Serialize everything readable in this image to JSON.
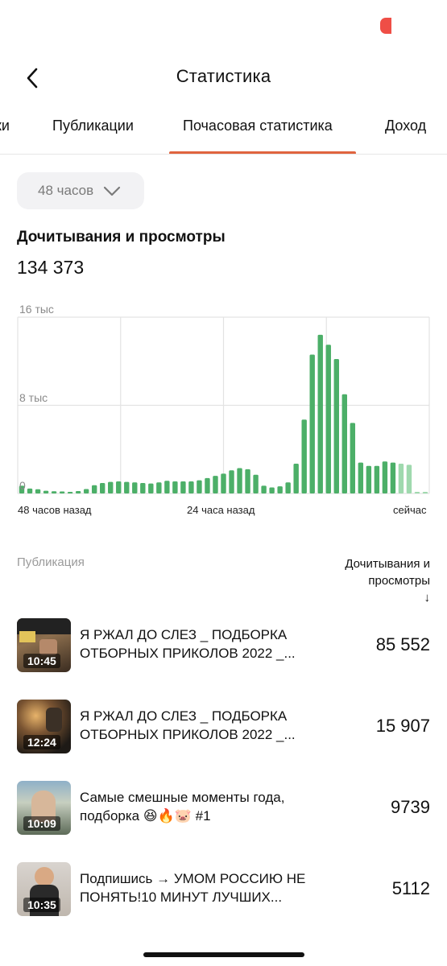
{
  "header": {
    "title": "Статистика"
  },
  "tabs": [
    {
      "label": "ки"
    },
    {
      "label": "Публикации"
    },
    {
      "label": "Почасовая статистика",
      "active": true
    },
    {
      "label": "Доход"
    }
  ],
  "period": {
    "selected": "48 часов"
  },
  "section": {
    "title": "Дочитывания и просмотры",
    "total": "134 373"
  },
  "chart_data": {
    "type": "bar",
    "title": "Дочитывания и просмотры",
    "yticks": [
      "16 тыс",
      "8 тыс",
      "0"
    ],
    "ylim": [
      0,
      16000
    ],
    "xticks": [
      "48 часов назад",
      "24 часа назад",
      "сейчас"
    ],
    "grid": true,
    "accent": "#4caf68",
    "accent_light": "#9fd9ae",
    "values": [
      700,
      450,
      380,
      250,
      200,
      180,
      150,
      220,
      400,
      750,
      950,
      1050,
      1100,
      1050,
      1000,
      950,
      900,
      1000,
      1150,
      1100,
      1100,
      1100,
      1200,
      1400,
      1600,
      1800,
      2100,
      2300,
      2200,
      1700,
      700,
      550,
      650,
      1000,
      2700,
      6700,
      12600,
      14400,
      13500,
      12200,
      9000,
      6400,
      2800,
      2500,
      2500,
      2900,
      2800,
      2700,
      2600,
      150,
      150
    ],
    "light_from_index": 47
  },
  "list": {
    "col_pub": "Публикация",
    "col_metric": "Дочитывания и просмотры",
    "sort_arrow": "↓",
    "items": [
      {
        "title": "Я РЖАЛ ДО СЛЕЗ _ ПОДБОРКА ОТБОРНЫХ ПРИКОЛОВ 2022 _...",
        "duration": "10:45",
        "value": "85 552"
      },
      {
        "title": "Я РЖАЛ ДО СЛЕЗ _ ПОДБОРКА ОТБОРНЫХ ПРИКОЛОВ 2022 _...",
        "duration": "12:24",
        "value": "15 907"
      },
      {
        "title": "Самые смешные моменты года, подборка 😆🔥🐷 #1",
        "duration": "10:09",
        "value": "9739"
      },
      {
        "title": "Подпишись → УМОМ РОССИЮ НЕ ПОНЯТЬ!10 МИНУТ ЛУЧШИХ...",
        "duration": "10:35",
        "value": "5112"
      }
    ]
  }
}
